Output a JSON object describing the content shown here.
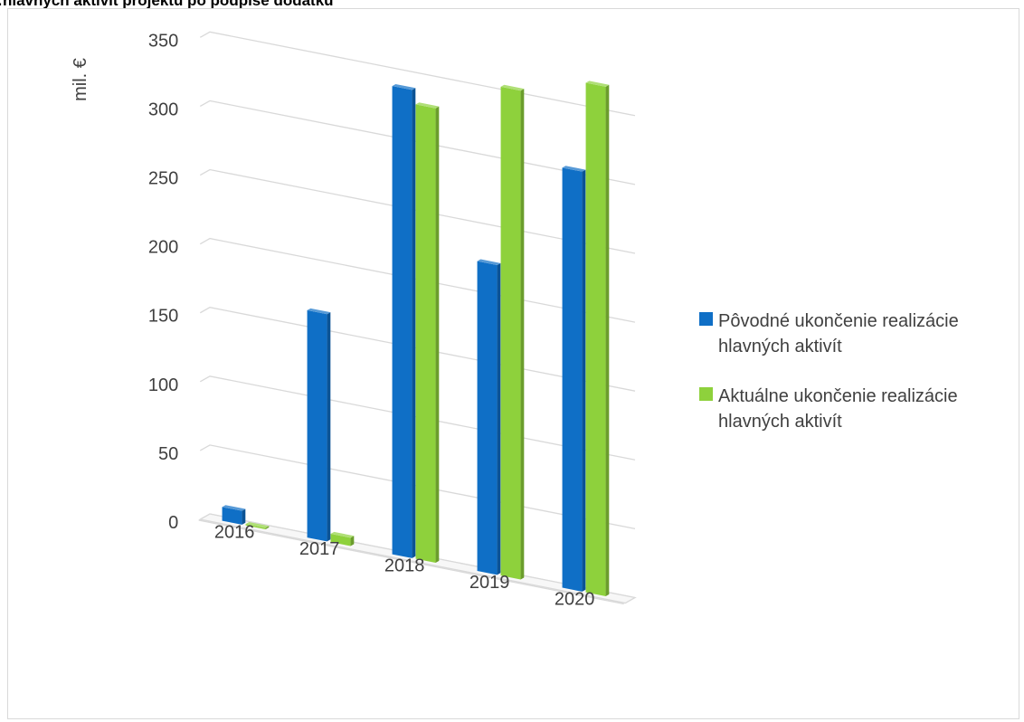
{
  "chart_data": {
    "type": "bar",
    "title": "…hlavných aktivít projektu po podpise dodatku",
    "ylabel": "mil. €",
    "xlabel": "",
    "ylim": [
      0,
      350
    ],
    "yticks": [
      "0",
      "50",
      "100",
      "150",
      "200",
      "250",
      "300",
      "350"
    ],
    "categories": [
      "2016",
      "2017",
      "2018",
      "2019",
      "2020"
    ],
    "series": [
      {
        "name": "Pôvodné ukončenie realizácie hlavných aktivít",
        "name_lines": [
          "Pôvodné ukončenie realizácie",
          "hlavných aktivít"
        ],
        "color": "#0f6fc6",
        "values": [
          10,
          165,
          340,
          225,
          305
        ]
      },
      {
        "name": "Aktuálne ukončenie realizácie hlavných aktivít",
        "name_lines": [
          "Aktuálne ukončenie realizácie",
          "hlavných aktivít"
        ],
        "color": "#8ed13c",
        "values": [
          1,
          6,
          330,
          355,
          375
        ]
      }
    ],
    "grid": true,
    "legend_position": "right",
    "style": "3d-clustered-column"
  }
}
